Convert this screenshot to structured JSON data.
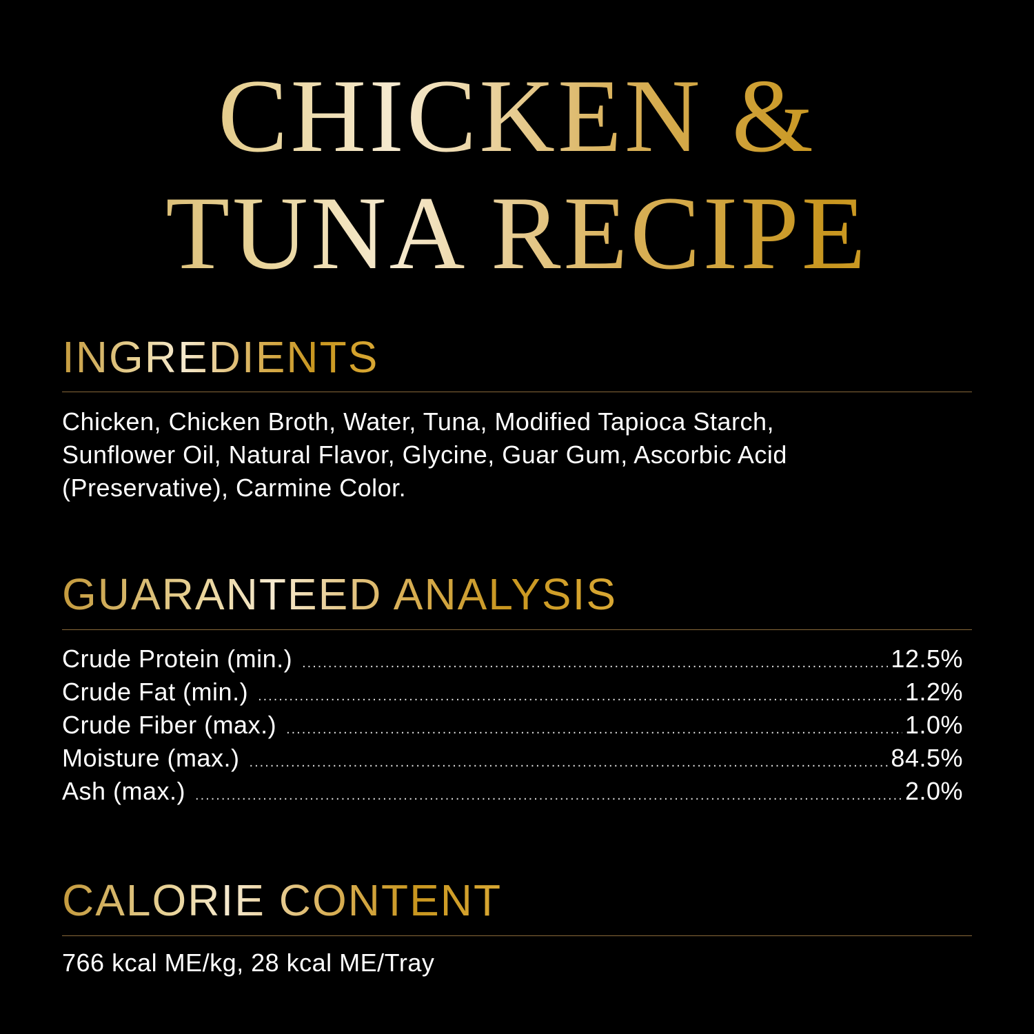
{
  "title": {
    "line1": "CHICKEN &",
    "line2": "TUNA RECIPE"
  },
  "ingredients": {
    "heading": "INGREDIENTS",
    "lines": [
      "Chicken, Chicken Broth, Water, Tuna, Modified Tapioca Starch,",
      "Sunflower Oil, Natural Flavor, Glycine, Guar Gum, Ascorbic Acid",
      "(Preservative), Carmine Color."
    ]
  },
  "analysis": {
    "heading": "GUARANTEED ANALYSIS",
    "rows": [
      {
        "label": "Crude Protein (min.)",
        "value": "12.5%"
      },
      {
        "label": "Crude Fat (min.)",
        "value": "1.2%"
      },
      {
        "label": "Crude Fiber (max.)",
        "value": "1.0%"
      },
      {
        "label": "Moisture (max.)",
        "value": "84.5%"
      },
      {
        "label": "Ash (max.)",
        "value": "2.0%"
      }
    ]
  },
  "calorie": {
    "heading": "CALORIE CONTENT",
    "text": "766 kcal ME/kg, 28 kcal ME/Tray"
  },
  "colors": {
    "background": "#000000",
    "gold": "#d4a63a",
    "rule": "#8a6a3a",
    "text": "#ffffff"
  }
}
